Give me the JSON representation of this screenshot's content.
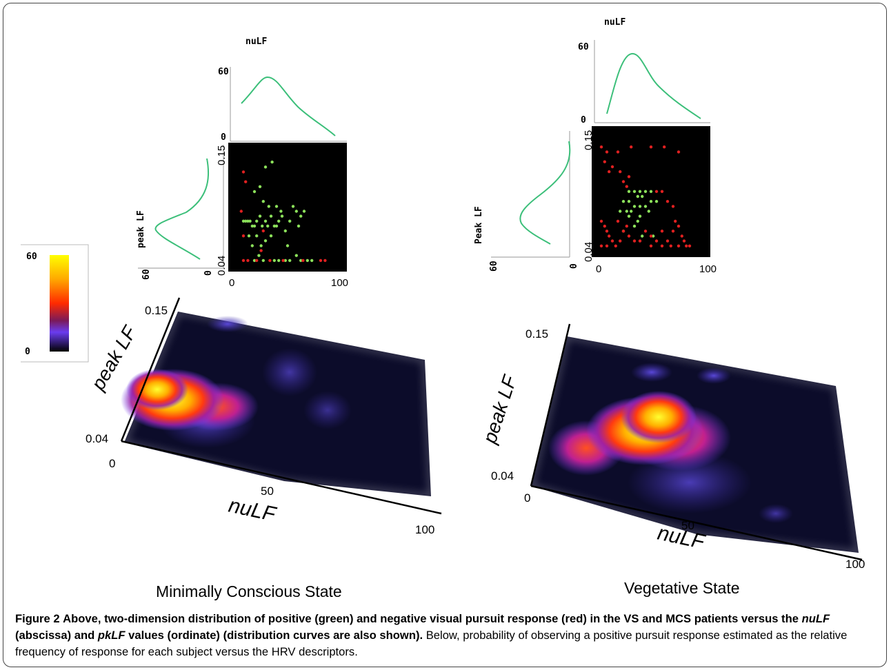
{
  "colorbar": {
    "max_label": "60",
    "min_label": "0",
    "stops": [
      "#ffff00",
      "#ffa800",
      "#ff2a00",
      "#7a1a5a",
      "#6a3cf0",
      "#000000"
    ]
  },
  "panels": [
    {
      "id": "mcs",
      "condition_label": "Minimally Conscious State",
      "top_density_title": "nuLF",
      "top_density_axis": {
        "top": "60",
        "bottom": "0"
      },
      "side_density_title": "peak LF",
      "side_density_axis": {
        "left": "60",
        "right": "0"
      },
      "scatter_y_ticks": [
        "0.15",
        "0.04"
      ],
      "scatter_x_ticks": [
        "0",
        "100"
      ],
      "surface_y_title": "peak LF",
      "surface_y_ticks": [
        "0.15",
        "0.04"
      ],
      "surface_x_title": "nuLF",
      "surface_x_ticks": [
        "0",
        "50",
        "100"
      ]
    },
    {
      "id": "vs",
      "condition_label": "Vegetative State",
      "top_density_title": "nuLF",
      "top_density_axis": {
        "top": "60",
        "bottom": "0"
      },
      "side_density_title": "Peak LF",
      "side_density_axis": {
        "left": "60",
        "right": "0"
      },
      "scatter_y_ticks": [
        "0.15",
        "0.04"
      ],
      "scatter_x_ticks": [
        "0",
        "100"
      ],
      "surface_y_title": "peak LF",
      "surface_y_ticks": [
        "0.15",
        "0.04"
      ],
      "surface_x_title": "nuLF",
      "surface_x_ticks": [
        "0",
        "50",
        "100"
      ]
    }
  ],
  "colors": {
    "positive": "#8be05a",
    "negative": "#e02020",
    "curve": "#3cbf7a",
    "surface_base": "#0c0c2a"
  },
  "chart_data": [
    {
      "type": "scatter",
      "panel": "Minimally Conscious State",
      "xlim": [
        0,
        100
      ],
      "ylim": [
        0.04,
        0.15
      ],
      "series": [
        {
          "color": "green",
          "points": [
            [
              10,
              0.085
            ],
            [
              12,
              0.085
            ],
            [
              14,
              0.085
            ],
            [
              16,
              0.085
            ],
            [
              18,
              0.08
            ],
            [
              20,
              0.08
            ],
            [
              22,
              0.085
            ],
            [
              25,
              0.09
            ],
            [
              27,
              0.08
            ],
            [
              30,
              0.085
            ],
            [
              32,
              0.08
            ],
            [
              35,
              0.09
            ],
            [
              38,
              0.08
            ],
            [
              40,
              0.08
            ],
            [
              42,
              0.085
            ],
            [
              45,
              0.09
            ],
            [
              48,
              0.075
            ],
            [
              50,
              0.06
            ],
            [
              52,
              0.085
            ],
            [
              55,
              0.1
            ],
            [
              58,
              0.095
            ],
            [
              60,
              0.08
            ],
            [
              62,
              0.09
            ],
            [
              65,
              0.095
            ],
            [
              30,
              0.14
            ],
            [
              36,
              0.145
            ],
            [
              20,
              0.115
            ],
            [
              25,
              0.12
            ],
            [
              28,
              0.105
            ],
            [
              33,
              0.1
            ],
            [
              40,
              0.1
            ],
            [
              44,
              0.095
            ],
            [
              22,
              0.07
            ],
            [
              26,
              0.06
            ],
            [
              30,
              0.065
            ],
            [
              35,
              0.07
            ],
            [
              15,
              0.07
            ],
            [
              18,
              0.06
            ],
            [
              24,
              0.05
            ],
            [
              38,
              0.045
            ],
            [
              42,
              0.045
            ],
            [
              48,
              0.045
            ],
            [
              52,
              0.045
            ],
            [
              58,
              0.05
            ],
            [
              62,
              0.045
            ],
            [
              68,
              0.045
            ],
            [
              72,
              0.045
            ],
            [
              20,
              0.045
            ],
            [
              28,
              0.045
            ]
          ]
        },
        {
          "color": "red",
          "points": [
            [
              10,
              0.135
            ],
            [
              12,
              0.125
            ],
            [
              8,
              0.095
            ],
            [
              10,
              0.07
            ],
            [
              10,
              0.045
            ],
            [
              14,
              0.045
            ],
            [
              22,
              0.045
            ],
            [
              34,
              0.045
            ],
            [
              46,
              0.045
            ],
            [
              64,
              0.045
            ],
            [
              80,
              0.045
            ],
            [
              84,
              0.045
            ],
            [
              28,
              0.075
            ],
            [
              26,
              0.055
            ]
          ]
        }
      ]
    },
    {
      "type": "scatter",
      "panel": "Vegetative State",
      "xlim": [
        0,
        100
      ],
      "ylim": [
        0.04,
        0.15
      ],
      "series": [
        {
          "color": "green",
          "points": [
            [
              30,
              0.1
            ],
            [
              35,
              0.1
            ],
            [
              40,
              0.1
            ],
            [
              45,
              0.1
            ],
            [
              50,
              0.1
            ],
            [
              38,
              0.095
            ],
            [
              42,
              0.095
            ],
            [
              25,
              0.09
            ],
            [
              30,
              0.09
            ],
            [
              35,
              0.085
            ],
            [
              40,
              0.085
            ],
            [
              45,
              0.085
            ],
            [
              50,
              0.09
            ],
            [
              55,
              0.09
            ],
            [
              22,
              0.08
            ],
            [
              28,
              0.08
            ],
            [
              32,
              0.08
            ],
            [
              48,
              0.08
            ],
            [
              30,
              0.075
            ],
            [
              40,
              0.075
            ],
            [
              38,
              0.07
            ],
            [
              35,
              0.065
            ],
            [
              25,
              0.06
            ],
            [
              42,
              0.055
            ],
            [
              52,
              0.055
            ]
          ]
        },
        {
          "color": "red",
          "points": [
            [
              5,
              0.145
            ],
            [
              10,
              0.14
            ],
            [
              20,
              0.14
            ],
            [
              32,
              0.145
            ],
            [
              50,
              0.145
            ],
            [
              62,
              0.145
            ],
            [
              75,
              0.14
            ],
            [
              8,
              0.13
            ],
            [
              12,
              0.12
            ],
            [
              15,
              0.125
            ],
            [
              22,
              0.12
            ],
            [
              25,
              0.11
            ],
            [
              28,
              0.105
            ],
            [
              30,
              0.115
            ],
            [
              55,
              0.1
            ],
            [
              60,
              0.1
            ],
            [
              65,
              0.09
            ],
            [
              70,
              0.085
            ],
            [
              5,
              0.07
            ],
            [
              8,
              0.065
            ],
            [
              10,
              0.06
            ],
            [
              12,
              0.055
            ],
            [
              15,
              0.05
            ],
            [
              18,
              0.045
            ],
            [
              22,
              0.05
            ],
            [
              25,
              0.06
            ],
            [
              30,
              0.055
            ],
            [
              35,
              0.05
            ],
            [
              40,
              0.05
            ],
            [
              45,
              0.06
            ],
            [
              50,
              0.055
            ],
            [
              55,
              0.05
            ],
            [
              60,
              0.06
            ],
            [
              65,
              0.05
            ],
            [
              70,
              0.06
            ],
            [
              72,
              0.07
            ],
            [
              75,
              0.065
            ],
            [
              78,
              0.055
            ],
            [
              80,
              0.05
            ],
            [
              82,
              0.045
            ],
            [
              5,
              0.045
            ],
            [
              10,
              0.045
            ],
            [
              50,
              0.045
            ],
            [
              60,
              0.045
            ],
            [
              68,
              0.045
            ],
            [
              75,
              0.045
            ],
            [
              85,
              0.045
            ],
            [
              20,
              0.07
            ],
            [
              28,
              0.065
            ]
          ]
        }
      ]
    },
    {
      "type": "heatmap",
      "panel": "Minimally Conscious State",
      "xlim": [
        0,
        100
      ],
      "ylim": [
        0.04,
        0.15
      ],
      "zlim": [
        0,
        60
      ],
      "peaks": [
        {
          "x": 8,
          "y": 0.1,
          "z": 60
        },
        {
          "x": 20,
          "y": 0.09,
          "z": 45
        },
        {
          "x": 30,
          "y": 0.08,
          "z": 28
        }
      ]
    },
    {
      "type": "heatmap",
      "panel": "Vegetative State",
      "xlim": [
        0,
        100
      ],
      "ylim": [
        0.04,
        0.15
      ],
      "zlim": [
        0,
        60
      ],
      "peaks": [
        {
          "x": 35,
          "y": 0.1,
          "z": 60
        },
        {
          "x": 20,
          "y": 0.075,
          "z": 40
        },
        {
          "x": 45,
          "y": 0.07,
          "z": 30
        }
      ]
    }
  ],
  "caption": {
    "figure_label": "Figure 2",
    "bold_lead": "Above, two-dimension distribution of positive (green) and negative visual pursuit response (red) in the VS and MCS patients versus the",
    "bold_nulf": "nuLF",
    "bold_mid": "(abscissa) and",
    "bold_pklf": "pkLF",
    "bold_tail": "values (ordinate) (distribution curves are also shown).",
    "plain": "Below, probability of observing a positive pursuit response estimated as the relative frequency of response for each subject versus the HRV descriptors."
  }
}
